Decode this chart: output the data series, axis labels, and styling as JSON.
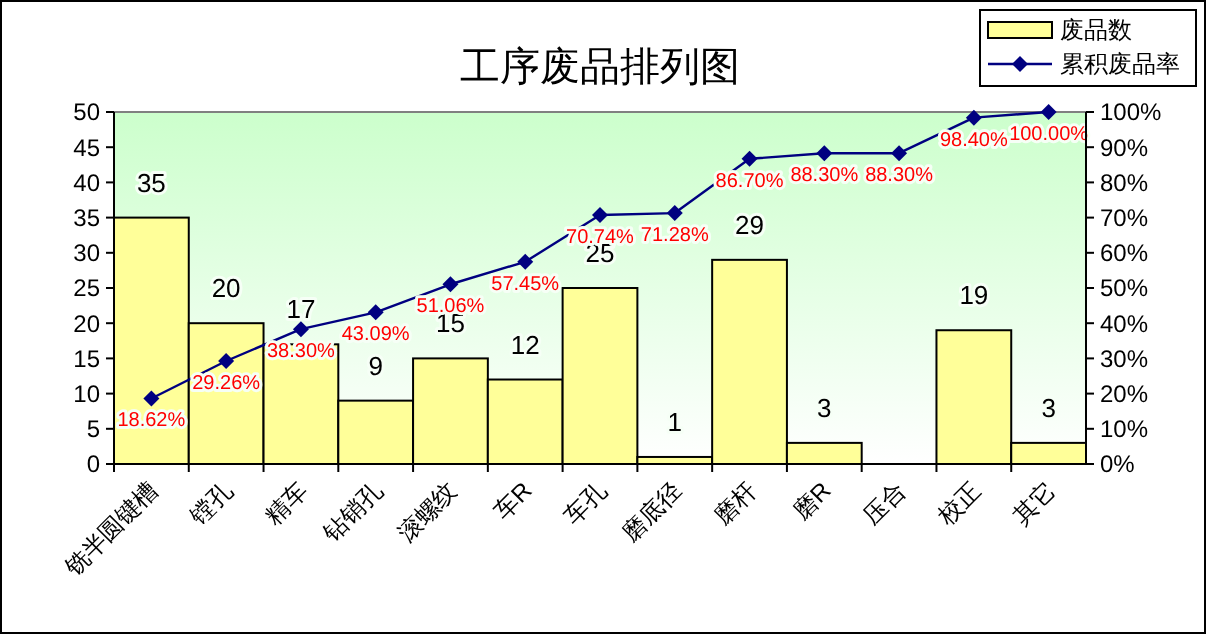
{
  "chart_data": {
    "type": "bar",
    "title": "工序废品排列图",
    "categories": [
      "铣半圆键槽",
      "镗孔",
      "精车",
      "钻销孔",
      "滚螺纹",
      "车R",
      "车孔",
      "磨底径",
      "磨杆",
      "磨R",
      "压合",
      "校正",
      "其它"
    ],
    "series": [
      {
        "name": "废品数",
        "color": "#ffff99",
        "values": [
          35,
          20,
          17,
          9,
          15,
          12,
          25,
          1,
          29,
          3,
          0,
          19,
          3
        ],
        "value_labels": [
          "35",
          "20",
          "17",
          "9",
          "15",
          "12",
          "25",
          "1",
          "29",
          "3",
          null,
          "19",
          "3"
        ]
      },
      {
        "name": "累积废品率",
        "type": "line",
        "axis": "y2",
        "color": "#000080",
        "marker": "diamond",
        "values": [
          18.62,
          29.26,
          38.3,
          43.09,
          51.06,
          57.45,
          70.74,
          71.28,
          86.7,
          88.3,
          88.3,
          98.4,
          100.0
        ],
        "value_labels": [
          "18.62%",
          "29.26%",
          "38.30%",
          "43.09%",
          "51.06%",
          "57.45%",
          "70.74%",
          "71.28%",
          "86.70%",
          "88.30%",
          "88.30%",
          "98.40%",
          "100.00%"
        ]
      }
    ],
    "ylim": [
      0,
      50
    ],
    "yticks": [
      0,
      5,
      10,
      15,
      20,
      25,
      30,
      35,
      40,
      45,
      50
    ],
    "y2lim": [
      0,
      100
    ],
    "y2ticks": [
      {
        "value": 0,
        "label": "0%"
      },
      {
        "value": 10,
        "label": "10%"
      },
      {
        "value": 20,
        "label": "20%"
      },
      {
        "value": 30,
        "label": "30%"
      },
      {
        "value": 40,
        "label": "40%"
      },
      {
        "value": 50,
        "label": "50%"
      },
      {
        "value": 60,
        "label": "60%"
      },
      {
        "value": 70,
        "label": "70%"
      },
      {
        "value": 80,
        "label": "80%"
      },
      {
        "value": 90,
        "label": "90%"
      },
      {
        "value": 100,
        "label": "100%"
      }
    ],
    "grid": false,
    "legend": "top right"
  }
}
